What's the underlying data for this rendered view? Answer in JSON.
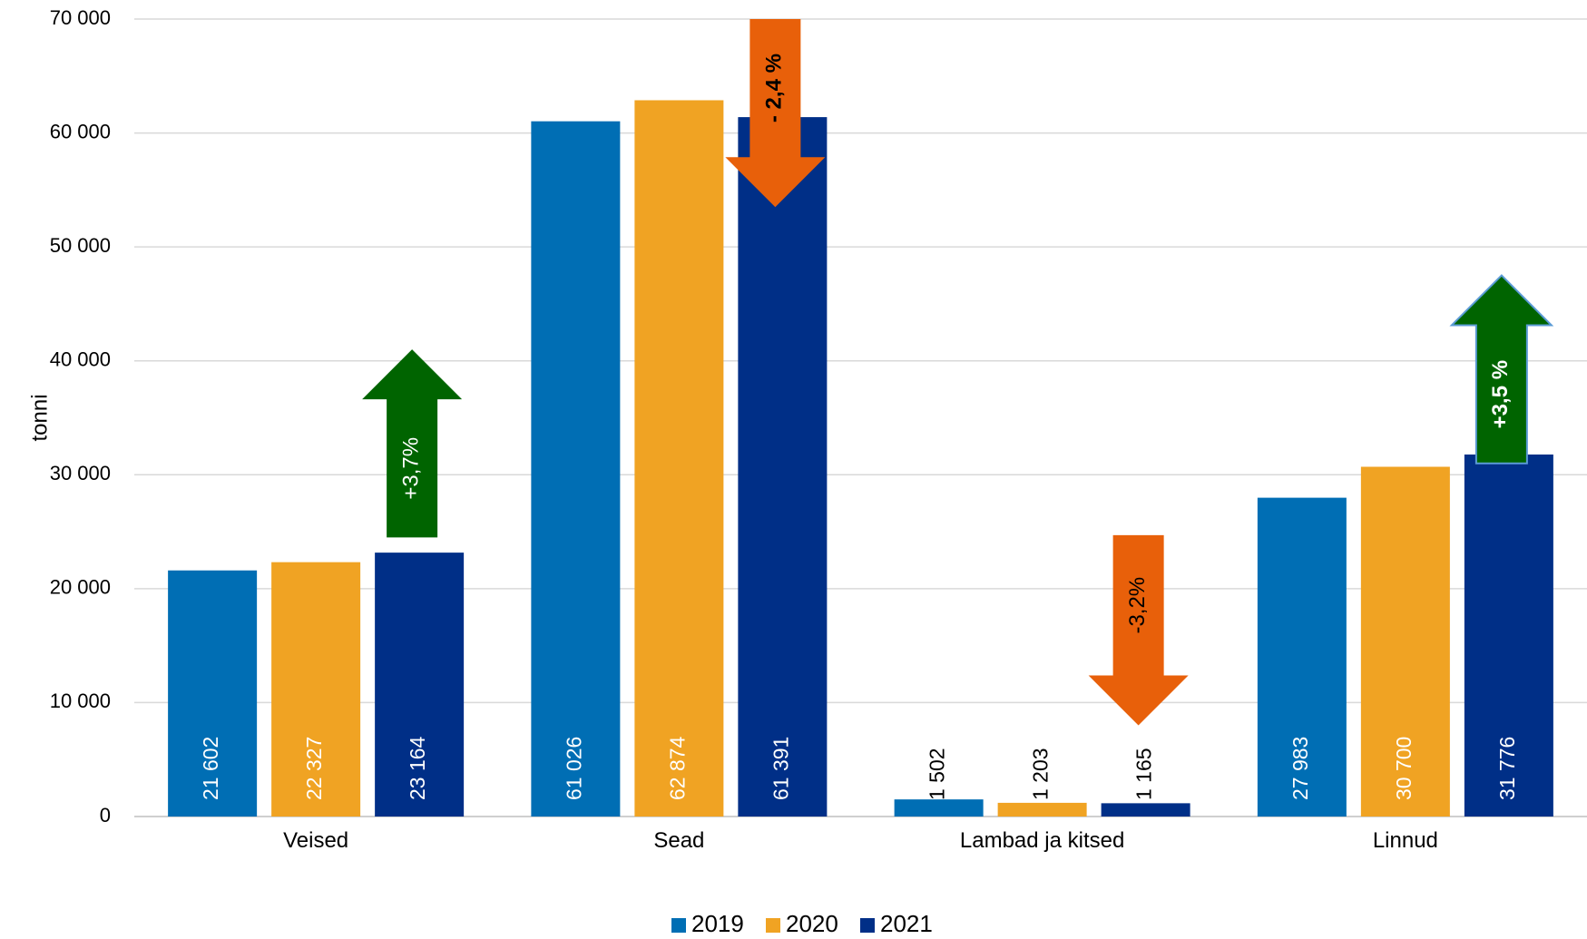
{
  "chart_data": {
    "type": "bar",
    "ylabel": "tonni",
    "ylim": [
      0,
      70000
    ],
    "yticks": [
      0,
      10000,
      20000,
      30000,
      40000,
      50000,
      60000,
      70000
    ],
    "ytick_labels": [
      "0",
      "10 000",
      "20 000",
      "30 000",
      "40 000",
      "50 000",
      "60 000",
      "70 000"
    ],
    "grid": true,
    "legend_position": "bottom",
    "categories": [
      "Veised",
      "Sead",
      "Lambad ja kitsed",
      "Linnud"
    ],
    "series": [
      {
        "name": "2019",
        "color": "#006EB4",
        "values": [
          21602,
          61026,
          1502,
          27983
        ],
        "labels": [
          "21 602",
          "61 026",
          "1 502",
          "27 983"
        ]
      },
      {
        "name": "2020",
        "color": "#F0A323",
        "values": [
          22327,
          62874,
          1203,
          30700
        ],
        "labels": [
          "22 327",
          "62 874",
          "1 203",
          "30 700"
        ]
      },
      {
        "name": "2021",
        "color": "#002F87",
        "values": [
          23164,
          61391,
          1165,
          31776
        ],
        "labels": [
          "23 164",
          "61 391",
          "1 165",
          "31 776"
        ]
      }
    ],
    "annotations": [
      {
        "category": "Veised",
        "text": "+3,7%",
        "direction": "up",
        "color": "#006400",
        "text_color": "#ffffff",
        "bold": false,
        "tail": 24500,
        "tip": 41000
      },
      {
        "category": "Sead",
        "text": "- 2,4 %",
        "direction": "down",
        "color": "#E8600A",
        "text_color": "#000000",
        "bold": true,
        "tail": 70000,
        "tip": 53500
      },
      {
        "category": "Lambad ja kitsed",
        "text": "-3,2%",
        "direction": "down",
        "color": "#E8600A",
        "text_color": "#000000",
        "bold": false,
        "tail": 24700,
        "tip": 8000
      },
      {
        "category": "Linnud",
        "text": "+3,5 %",
        "direction": "up",
        "color": "#006400",
        "text_color": "#ffffff",
        "bold": true,
        "tail": 31000,
        "tip": 47500
      }
    ]
  }
}
